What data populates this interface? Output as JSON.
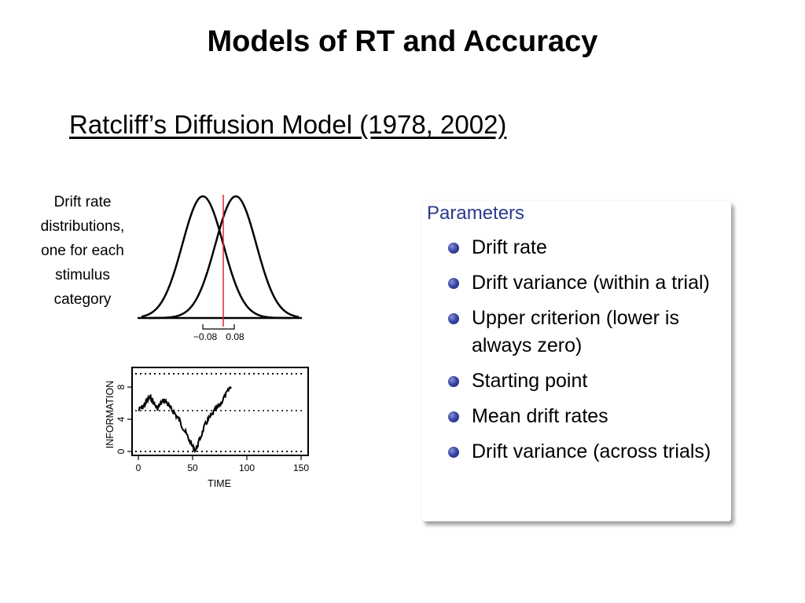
{
  "slide": {
    "title": "Models of RT and Accuracy",
    "subtitle": "Ratcliff’s Diffusion Model (1978, 2002)",
    "caption_lines": [
      "Drift rate",
      "distributions,",
      "one for each",
      "stimulus",
      "category"
    ]
  },
  "drift_figure": {
    "tick_labels": [
      "−0.08",
      "0.08"
    ],
    "criterion_color": "#e8242c"
  },
  "random_walk_figure": {
    "ylabel": "INFORMATION",
    "xlabel": "TIME",
    "x_ticks": [
      "0",
      "50",
      "100",
      "150"
    ],
    "y_ticks": [
      "0",
      "4",
      "8"
    ]
  },
  "parameters": {
    "heading": "Parameters",
    "items": [
      "Drift rate",
      "Drift variance (within a trial)",
      "Upper criterion (lower is always zero)",
      "Starting point",
      "Mean drift rates",
      "Drift variance (across trials)"
    ]
  }
}
